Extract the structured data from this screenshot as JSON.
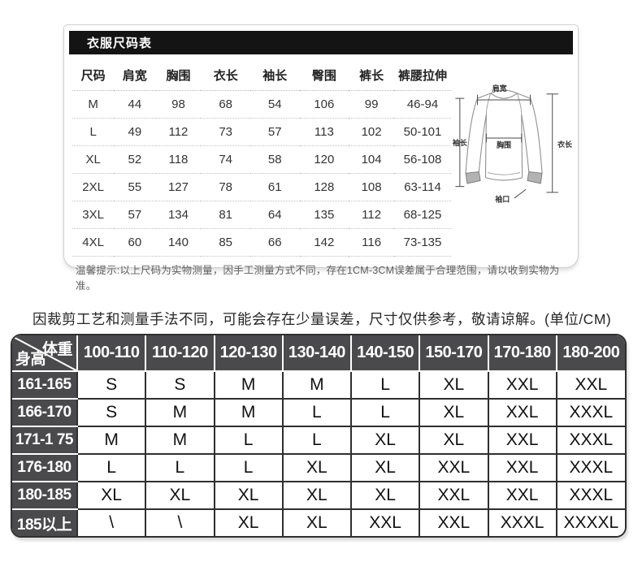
{
  "size_card": {
    "title": "衣服尺码表",
    "columns": [
      "尺码",
      "肩宽",
      "胸围",
      "衣长",
      "袖长",
      "臀围",
      "裤长",
      "裤腰拉伸"
    ],
    "rows": [
      [
        "M",
        "44",
        "98",
        "68",
        "54",
        "106",
        "99",
        "46-94"
      ],
      [
        "L",
        "49",
        "112",
        "73",
        "57",
        "113",
        "102",
        "50-101"
      ],
      [
        "XL",
        "52",
        "118",
        "74",
        "58",
        "120",
        "104",
        "56-108"
      ],
      [
        "2XL",
        "55",
        "127",
        "78",
        "61",
        "128",
        "108",
        "63-114"
      ],
      [
        "3XL",
        "57",
        "134",
        "81",
        "64",
        "135",
        "112",
        "68-125"
      ],
      [
        "4XL",
        "60",
        "140",
        "85",
        "66",
        "142",
        "116",
        "73-135"
      ]
    ],
    "note": "温馨提示:以上尺码为实物测量，因手工测量方式不同，存在1CM-3CM误差属于合理范围，请以收到实物为准。",
    "diagram_labels": {
      "shoulder": "肩宽",
      "length": "衣长",
      "chest": "胸围",
      "sleeve": "袖长",
      "cuff": "袖口"
    }
  },
  "disclaimer": "因裁剪工艺和测量手法不同，可能会存在少量误差，尺寸仅供参考，敬请谅解。(单位/CM)",
  "height_weight_table": {
    "corner": {
      "top_right": "体重",
      "bottom_left": "身高"
    },
    "weight_columns": [
      "100-110",
      "110-120",
      "120-130",
      "130-140",
      "140-150",
      "150-170",
      "170-180",
      "180-200"
    ],
    "rows": [
      [
        "161-165",
        "S",
        "S",
        "M",
        "M",
        "L",
        "XL",
        "XXL",
        "XXL"
      ],
      [
        "166-170",
        "S",
        "M",
        "M",
        "L",
        "L",
        "XL",
        "XXL",
        "XXXL"
      ],
      [
        "171-1 75",
        "M",
        "M",
        "L",
        "L",
        "XL",
        "XL",
        "XXL",
        "XXXL"
      ],
      [
        "176-180",
        "L",
        "L",
        "L",
        "XL",
        "XL",
        "XXL",
        "XXL",
        "XXXL"
      ],
      [
        "180-185",
        "XL",
        "XL",
        "XL",
        "XL",
        "XL",
        "XXL",
        "XXL",
        "XXXL"
      ],
      [
        "185以上",
        "\\",
        "\\",
        "XL",
        "XL",
        "XXL",
        "XXL",
        "XXXL",
        "XXXXL"
      ]
    ]
  },
  "colors": {
    "title_bar_bg": "#141414",
    "table_header_bg": "#4a4a4d",
    "border_dark": "#2f2f2f"
  }
}
